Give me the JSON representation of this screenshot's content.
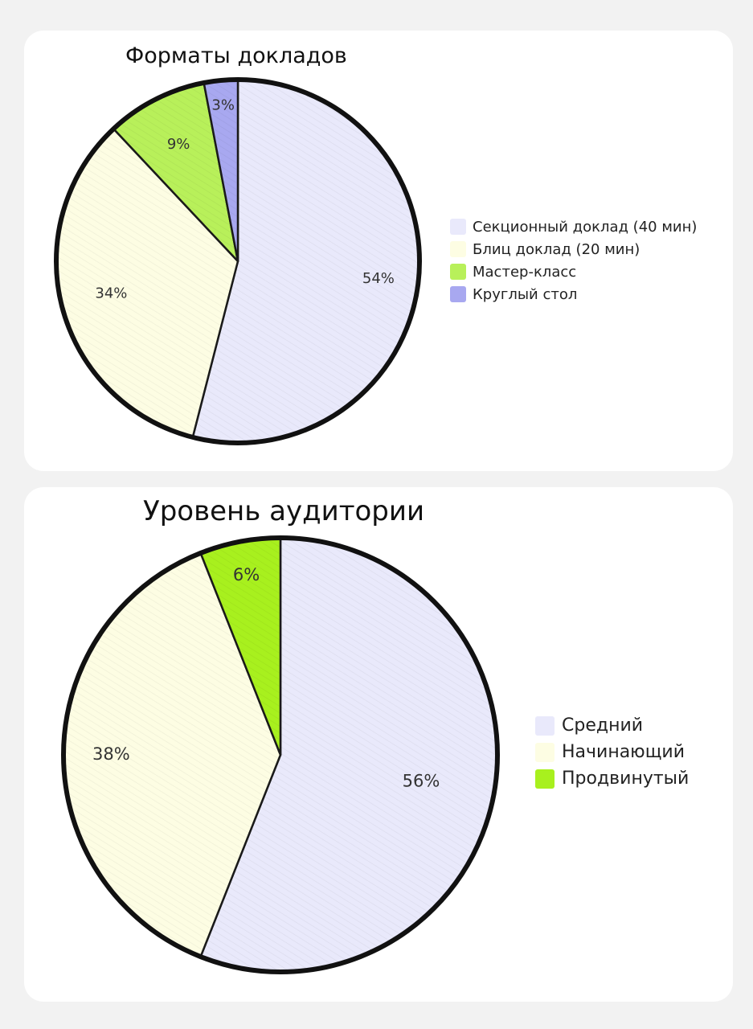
{
  "chart_data": [
    {
      "type": "pie",
      "title": "Форматы докладов",
      "categories": [
        "Секционный доклад (40 мин)",
        "Блиц доклад (20 мин)",
        "Мастер-класс",
        "Круглый стол"
      ],
      "values": [
        54,
        34,
        9,
        3
      ],
      "value_labels": [
        "54%",
        "34%",
        "9%",
        "3%"
      ],
      "colors": [
        "#e9e9fb",
        "#fdfde3",
        "#b8f05a",
        "#a8a8f0"
      ],
      "legend_position": "right"
    },
    {
      "type": "pie",
      "title": "Уровень аудитории",
      "categories": [
        "Средний",
        "Начинающий",
        "Продвинутый"
      ],
      "values": [
        56,
        38,
        6
      ],
      "value_labels": [
        "56%",
        "38%",
        "6%"
      ],
      "colors": [
        "#e9e9fb",
        "#fdfde3",
        "#a8f01e"
      ],
      "legend_position": "right"
    }
  ]
}
